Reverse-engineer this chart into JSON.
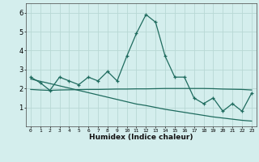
{
  "x": [
    0,
    1,
    2,
    3,
    4,
    5,
    6,
    7,
    8,
    9,
    10,
    11,
    12,
    13,
    14,
    15,
    16,
    17,
    18,
    19,
    20,
    21,
    22,
    23
  ],
  "line1": [
    2.6,
    2.3,
    1.9,
    2.6,
    2.4,
    2.2,
    2.6,
    2.4,
    2.9,
    2.4,
    3.7,
    4.9,
    5.9,
    5.5,
    3.7,
    2.6,
    2.6,
    1.5,
    1.2,
    1.5,
    0.8,
    1.2,
    0.8,
    1.75
  ],
  "line2": [
    1.95,
    1.92,
    1.9,
    1.92,
    1.93,
    1.94,
    1.95,
    1.95,
    1.96,
    1.97,
    1.97,
    1.98,
    1.98,
    1.99,
    2.0,
    2.0,
    2.0,
    2.0,
    2.0,
    1.99,
    1.97,
    1.96,
    1.95,
    1.92
  ],
  "line3": [
    2.5,
    2.38,
    2.26,
    2.14,
    2.02,
    1.9,
    1.78,
    1.66,
    1.54,
    1.42,
    1.3,
    1.18,
    1.1,
    1.0,
    0.9,
    0.82,
    0.74,
    0.66,
    0.58,
    0.5,
    0.44,
    0.38,
    0.32,
    0.28
  ],
  "color": "#1e6b5e",
  "bg_color": "#d4eeed",
  "grid_color": "#b8d8d4",
  "xlabel": "Humidex (Indice chaleur)",
  "ylim": [
    0,
    6.5
  ],
  "xlim": [
    -0.5,
    23.5
  ],
  "yticks": [
    1,
    2,
    3,
    4,
    5,
    6
  ],
  "xtick_labels": [
    "0",
    "1",
    "2",
    "3",
    "4",
    "5",
    "6",
    "7",
    "8",
    "9",
    "10",
    "11",
    "12",
    "13",
    "14",
    "15",
    "16",
    "17",
    "18",
    "19",
    "20",
    "21",
    "22",
    "23"
  ]
}
